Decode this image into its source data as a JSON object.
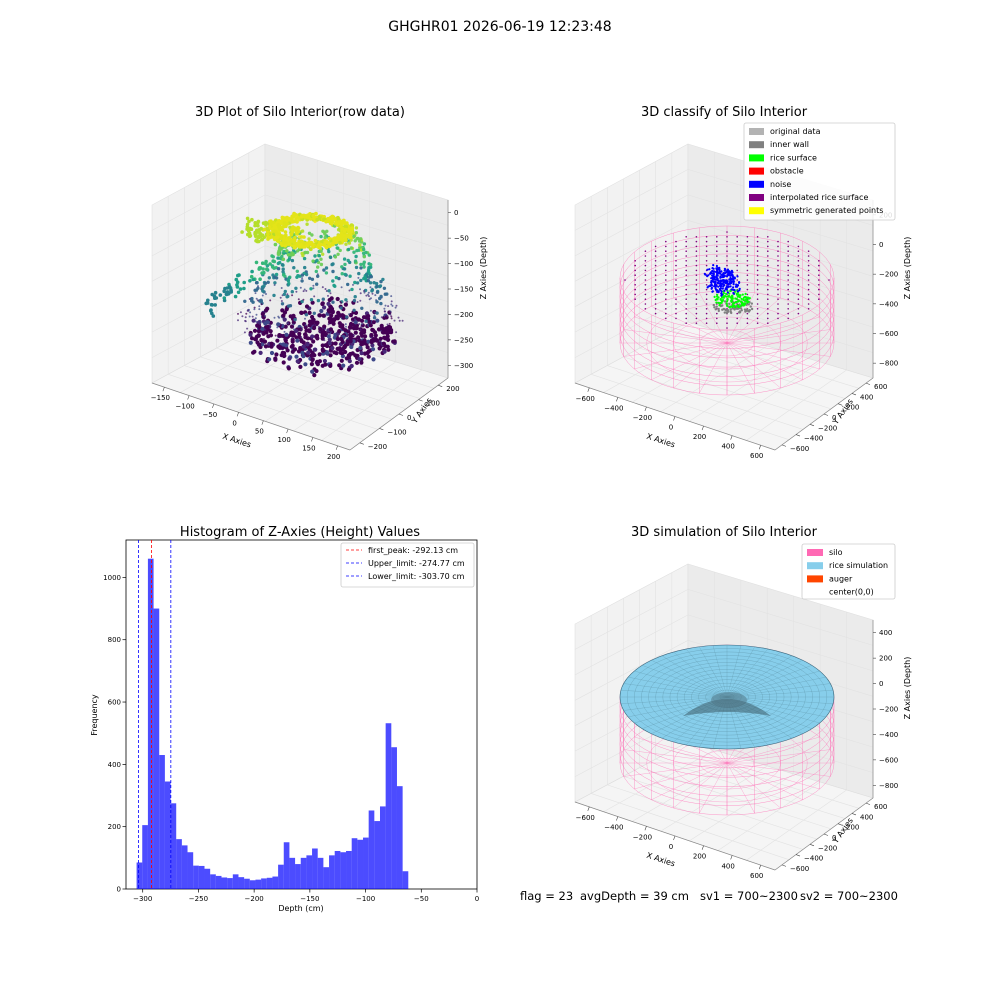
{
  "figure": {
    "suptitle": "GHGHR01 2026-06-19 12:23:48"
  },
  "panels": {
    "raw": {
      "title": "3D Plot of Silo Interior(row data)",
      "xlabel": "X Axies",
      "ylabel": "Y Axies",
      "zlabel": "Z Axies (Depth)",
      "xticks": [
        "−150",
        "−100",
        "−50",
        "0",
        "50",
        "100",
        "150",
        "200"
      ],
      "yticks": [
        "−200",
        "−100",
        "0",
        "100",
        "200"
      ],
      "zticks": [
        "0",
        "−50",
        "−100",
        "−150",
        "−200",
        "−250",
        "−300"
      ]
    },
    "classify": {
      "title": "3D classify of Silo Interior",
      "xlabel": "X Axies",
      "ylabel": "Y Axies",
      "zlabel": "Z Axies (Depth)",
      "xticks": [
        "−600",
        "−400",
        "−200",
        "0",
        "200",
        "400",
        "600"
      ],
      "yticks": [
        "−600",
        "−400",
        "−200",
        "0",
        "200",
        "400",
        "600"
      ],
      "zticks": [
        "200",
        "0",
        "−200",
        "−400",
        "−600",
        "−800"
      ],
      "legend": [
        {
          "label": "original data",
          "color": "#b3b3b3"
        },
        {
          "label": "inner wall",
          "color": "#808080"
        },
        {
          "label": "rice surface",
          "color": "#00ff00"
        },
        {
          "label": "obstacle",
          "color": "#ff0000"
        },
        {
          "label": "noise",
          "color": "#0000ff"
        },
        {
          "label": "interpolated rice surface",
          "color": "#800080"
        },
        {
          "label": "symmetric generated points",
          "color": "#ffff00"
        }
      ]
    },
    "simulation": {
      "title": "3D simulation of Silo Interior",
      "xlabel": "X Axies",
      "ylabel": "Y Axies",
      "zlabel": "Z Axies (Depth)",
      "xticks": [
        "−600",
        "−400",
        "−200",
        "0",
        "200",
        "400",
        "600"
      ],
      "yticks": [
        "−600",
        "−400",
        "−200",
        "0",
        "200",
        "400",
        "600"
      ],
      "zticks": [
        "400",
        "200",
        "0",
        "−200",
        "−400",
        "−600",
        "−800"
      ],
      "legend": [
        {
          "label": "silo",
          "color": "#ff69b4"
        },
        {
          "label": "rice simulation",
          "color": "#87ceeb"
        },
        {
          "label": "auger",
          "color": "#ff4500"
        },
        {
          "label": "center(0,0)",
          "color": ""
        }
      ]
    }
  },
  "chart_data": {
    "type": "bar",
    "title": "Histogram of Z-Axies (Height) Values",
    "xlabel": "Depth (cm)",
    "ylabel": "Frequency",
    "xlim": [
      -315,
      0
    ],
    "ylim": [
      0,
      1120
    ],
    "xticks": [
      "−300",
      "−250",
      "−200",
      "−150",
      "−100",
      "−50",
      "0"
    ],
    "yticks": [
      "0",
      "200",
      "400",
      "600",
      "800",
      "1000"
    ],
    "bar_color": "#0000ff",
    "bin_edges_start": -305.5,
    "bin_width": 5.08,
    "values": [
      85,
      205,
      1060,
      900,
      430,
      345,
      275,
      160,
      140,
      118,
      75,
      74,
      65,
      47,
      42,
      37,
      35,
      47,
      38,
      33,
      28,
      30,
      34,
      36,
      40,
      78,
      150,
      100,
      80,
      100,
      108,
      130,
      100,
      70,
      108,
      122,
      118,
      122,
      163,
      158,
      165,
      252,
      218,
      265,
      532,
      455,
      330,
      57
    ],
    "lines": [
      {
        "name": "first_peak: -292.13 cm",
        "x": -292.13,
        "color": "#ff0000"
      },
      {
        "name": "Upper_limit: -274.77 cm",
        "x": -274.77,
        "color": "#0000ff"
      },
      {
        "name": "Lower_limit: -303.70 cm",
        "x": -303.7,
        "color": "#0000ff"
      }
    ],
    "legend_position": "top-right"
  },
  "status": {
    "flag": "flag = 23",
    "avg_depth": "avgDepth = 39 cm",
    "sv1": "sv1 = 700~2300",
    "sv2": "sv2 = 700~2300"
  }
}
